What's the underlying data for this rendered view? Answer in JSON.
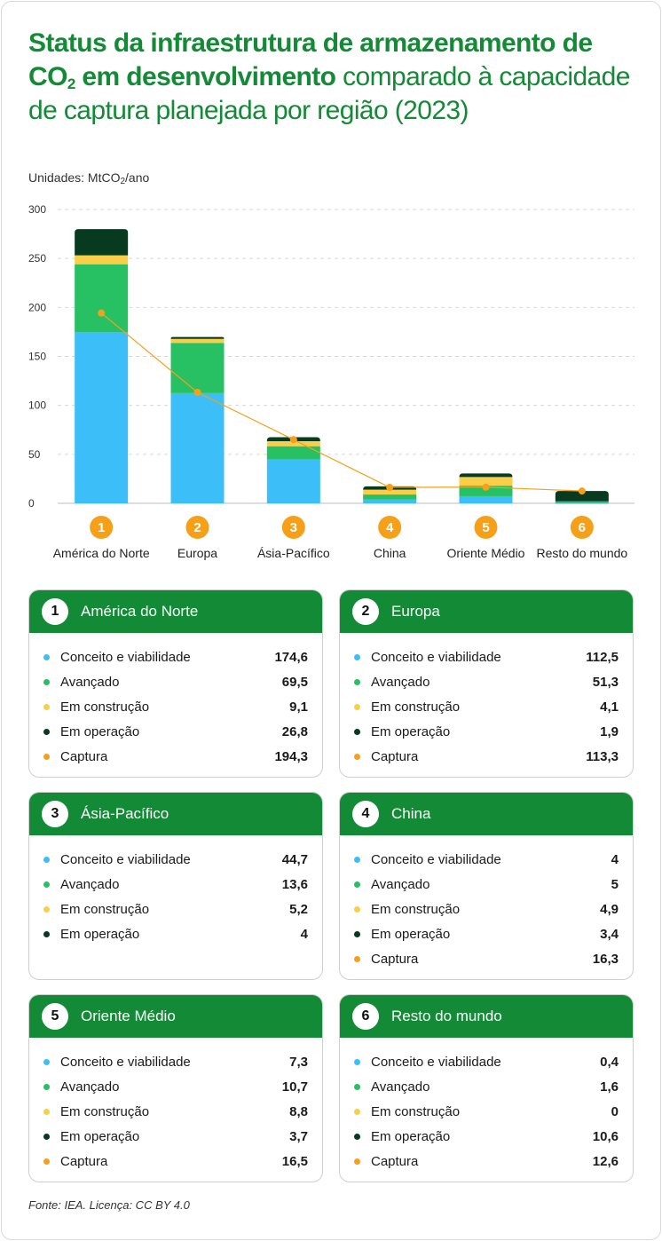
{
  "title_bold": "Status da infraestrutura de armazenamento de CO",
  "title_bold_sub": "2",
  "title_bold_end": " em desenvolvimento",
  "title_rest": " comparado à capacidade de captura planejada por região (2023)",
  "units_prefix": "Unidades: MtCO",
  "units_sub": "2",
  "units_suffix": "/ano",
  "source": "Fonte: IEA. Licença: CC BY 4.0",
  "colors": {
    "brand": "#138a36",
    "conceito": "#3cbff9",
    "avancado": "#27c062",
    "construcao": "#f9cf4a",
    "operacao": "#073a1e",
    "captura": "#f6a01a"
  },
  "chart_data": {
    "type": "bar",
    "stacked": true,
    "ylim": [
      0,
      300
    ],
    "yticks": [
      "0",
      "50",
      "100",
      "150",
      "200",
      "250",
      "300"
    ],
    "grid": true,
    "categories": [
      "América do Norte",
      "Europa",
      "Ásia-Pacífico",
      "China",
      "Oriente Médio",
      "Resto do mundo"
    ],
    "badges": [
      "1",
      "2",
      "3",
      "4",
      "5",
      "6"
    ],
    "series": [
      {
        "name": "Conceito e viabilidade",
        "color": "#3cbff9",
        "values": [
          174.6,
          112.5,
          44.7,
          4,
          7.3,
          0.4
        ]
      },
      {
        "name": "Avançado",
        "color": "#27c062",
        "values": [
          69.5,
          51.3,
          13.6,
          5,
          10.7,
          1.6
        ]
      },
      {
        "name": "Em construção",
        "color": "#f9cf4a",
        "values": [
          9.1,
          4.1,
          5.2,
          4.9,
          8.8,
          0
        ]
      },
      {
        "name": "Em operação",
        "color": "#073a1e",
        "values": [
          26.8,
          1.9,
          4,
          3.4,
          3.7,
          10.6
        ]
      }
    ],
    "line": {
      "name": "Captura",
      "color": "#f6a01a",
      "values": [
        194.3,
        113.3,
        65,
        16.3,
        16.5,
        12.6
      ]
    }
  },
  "cards": [
    {
      "num": "1",
      "title": "América do Norte",
      "rows": [
        {
          "label": "Conceito e viabilidade",
          "value": "174,6",
          "color": "#3cbff9"
        },
        {
          "label": "Avançado",
          "value": "69,5",
          "color": "#27c062"
        },
        {
          "label": "Em construção",
          "value": "9,1",
          "color": "#f9cf4a"
        },
        {
          "label": "Em operação",
          "value": "26,8",
          "color": "#073a1e"
        },
        {
          "label": "Captura",
          "value": "194,3",
          "color": "#f6a01a"
        }
      ]
    },
    {
      "num": "2",
      "title": "Europa",
      "rows": [
        {
          "label": "Conceito e viabilidade",
          "value": "112,5",
          "color": "#3cbff9"
        },
        {
          "label": "Avançado",
          "value": "51,3",
          "color": "#27c062"
        },
        {
          "label": "Em construção",
          "value": "4,1",
          "color": "#f9cf4a"
        },
        {
          "label": "Em operação",
          "value": "1,9",
          "color": "#073a1e"
        },
        {
          "label": "Captura",
          "value": "113,3",
          "color": "#f6a01a"
        }
      ]
    },
    {
      "num": "3",
      "title": "Ásia-Pacífico",
      "rows": [
        {
          "label": "Conceito e viabilidade",
          "value": "44,7",
          "color": "#3cbff9"
        },
        {
          "label": "Avançado",
          "value": "13,6",
          "color": "#27c062"
        },
        {
          "label": "Em construção",
          "value": "5,2",
          "color": "#f9cf4a"
        },
        {
          "label": "Em operação",
          "value": "4",
          "color": "#073a1e"
        }
      ]
    },
    {
      "num": "4",
      "title": "China",
      "rows": [
        {
          "label": "Conceito e viabilidade",
          "value": "4",
          "color": "#3cbff9"
        },
        {
          "label": "Avançado",
          "value": "5",
          "color": "#27c062"
        },
        {
          "label": "Em construção",
          "value": "4,9",
          "color": "#f9cf4a"
        },
        {
          "label": "Em operação",
          "value": "3,4",
          "color": "#073a1e"
        },
        {
          "label": "Captura",
          "value": "16,3",
          "color": "#f6a01a"
        }
      ]
    },
    {
      "num": "5",
      "title": "Oriente Médio",
      "rows": [
        {
          "label": "Conceito e viabilidade",
          "value": "7,3",
          "color": "#3cbff9"
        },
        {
          "label": "Avançado",
          "value": "10,7",
          "color": "#27c062"
        },
        {
          "label": "Em construção",
          "value": "8,8",
          "color": "#f9cf4a"
        },
        {
          "label": "Em operação",
          "value": "3,7",
          "color": "#073a1e"
        },
        {
          "label": "Captura",
          "value": "16,5",
          "color": "#f6a01a"
        }
      ]
    },
    {
      "num": "6",
      "title": "Resto do mundo",
      "rows": [
        {
          "label": "Conceito e viabilidade",
          "value": "0,4",
          "color": "#3cbff9"
        },
        {
          "label": "Avançado",
          "value": "1,6",
          "color": "#27c062"
        },
        {
          "label": "Em construção",
          "value": "0",
          "color": "#f9cf4a"
        },
        {
          "label": "Em operação",
          "value": "10,6",
          "color": "#073a1e"
        },
        {
          "label": "Captura",
          "value": "12,6",
          "color": "#f6a01a"
        }
      ]
    }
  ]
}
